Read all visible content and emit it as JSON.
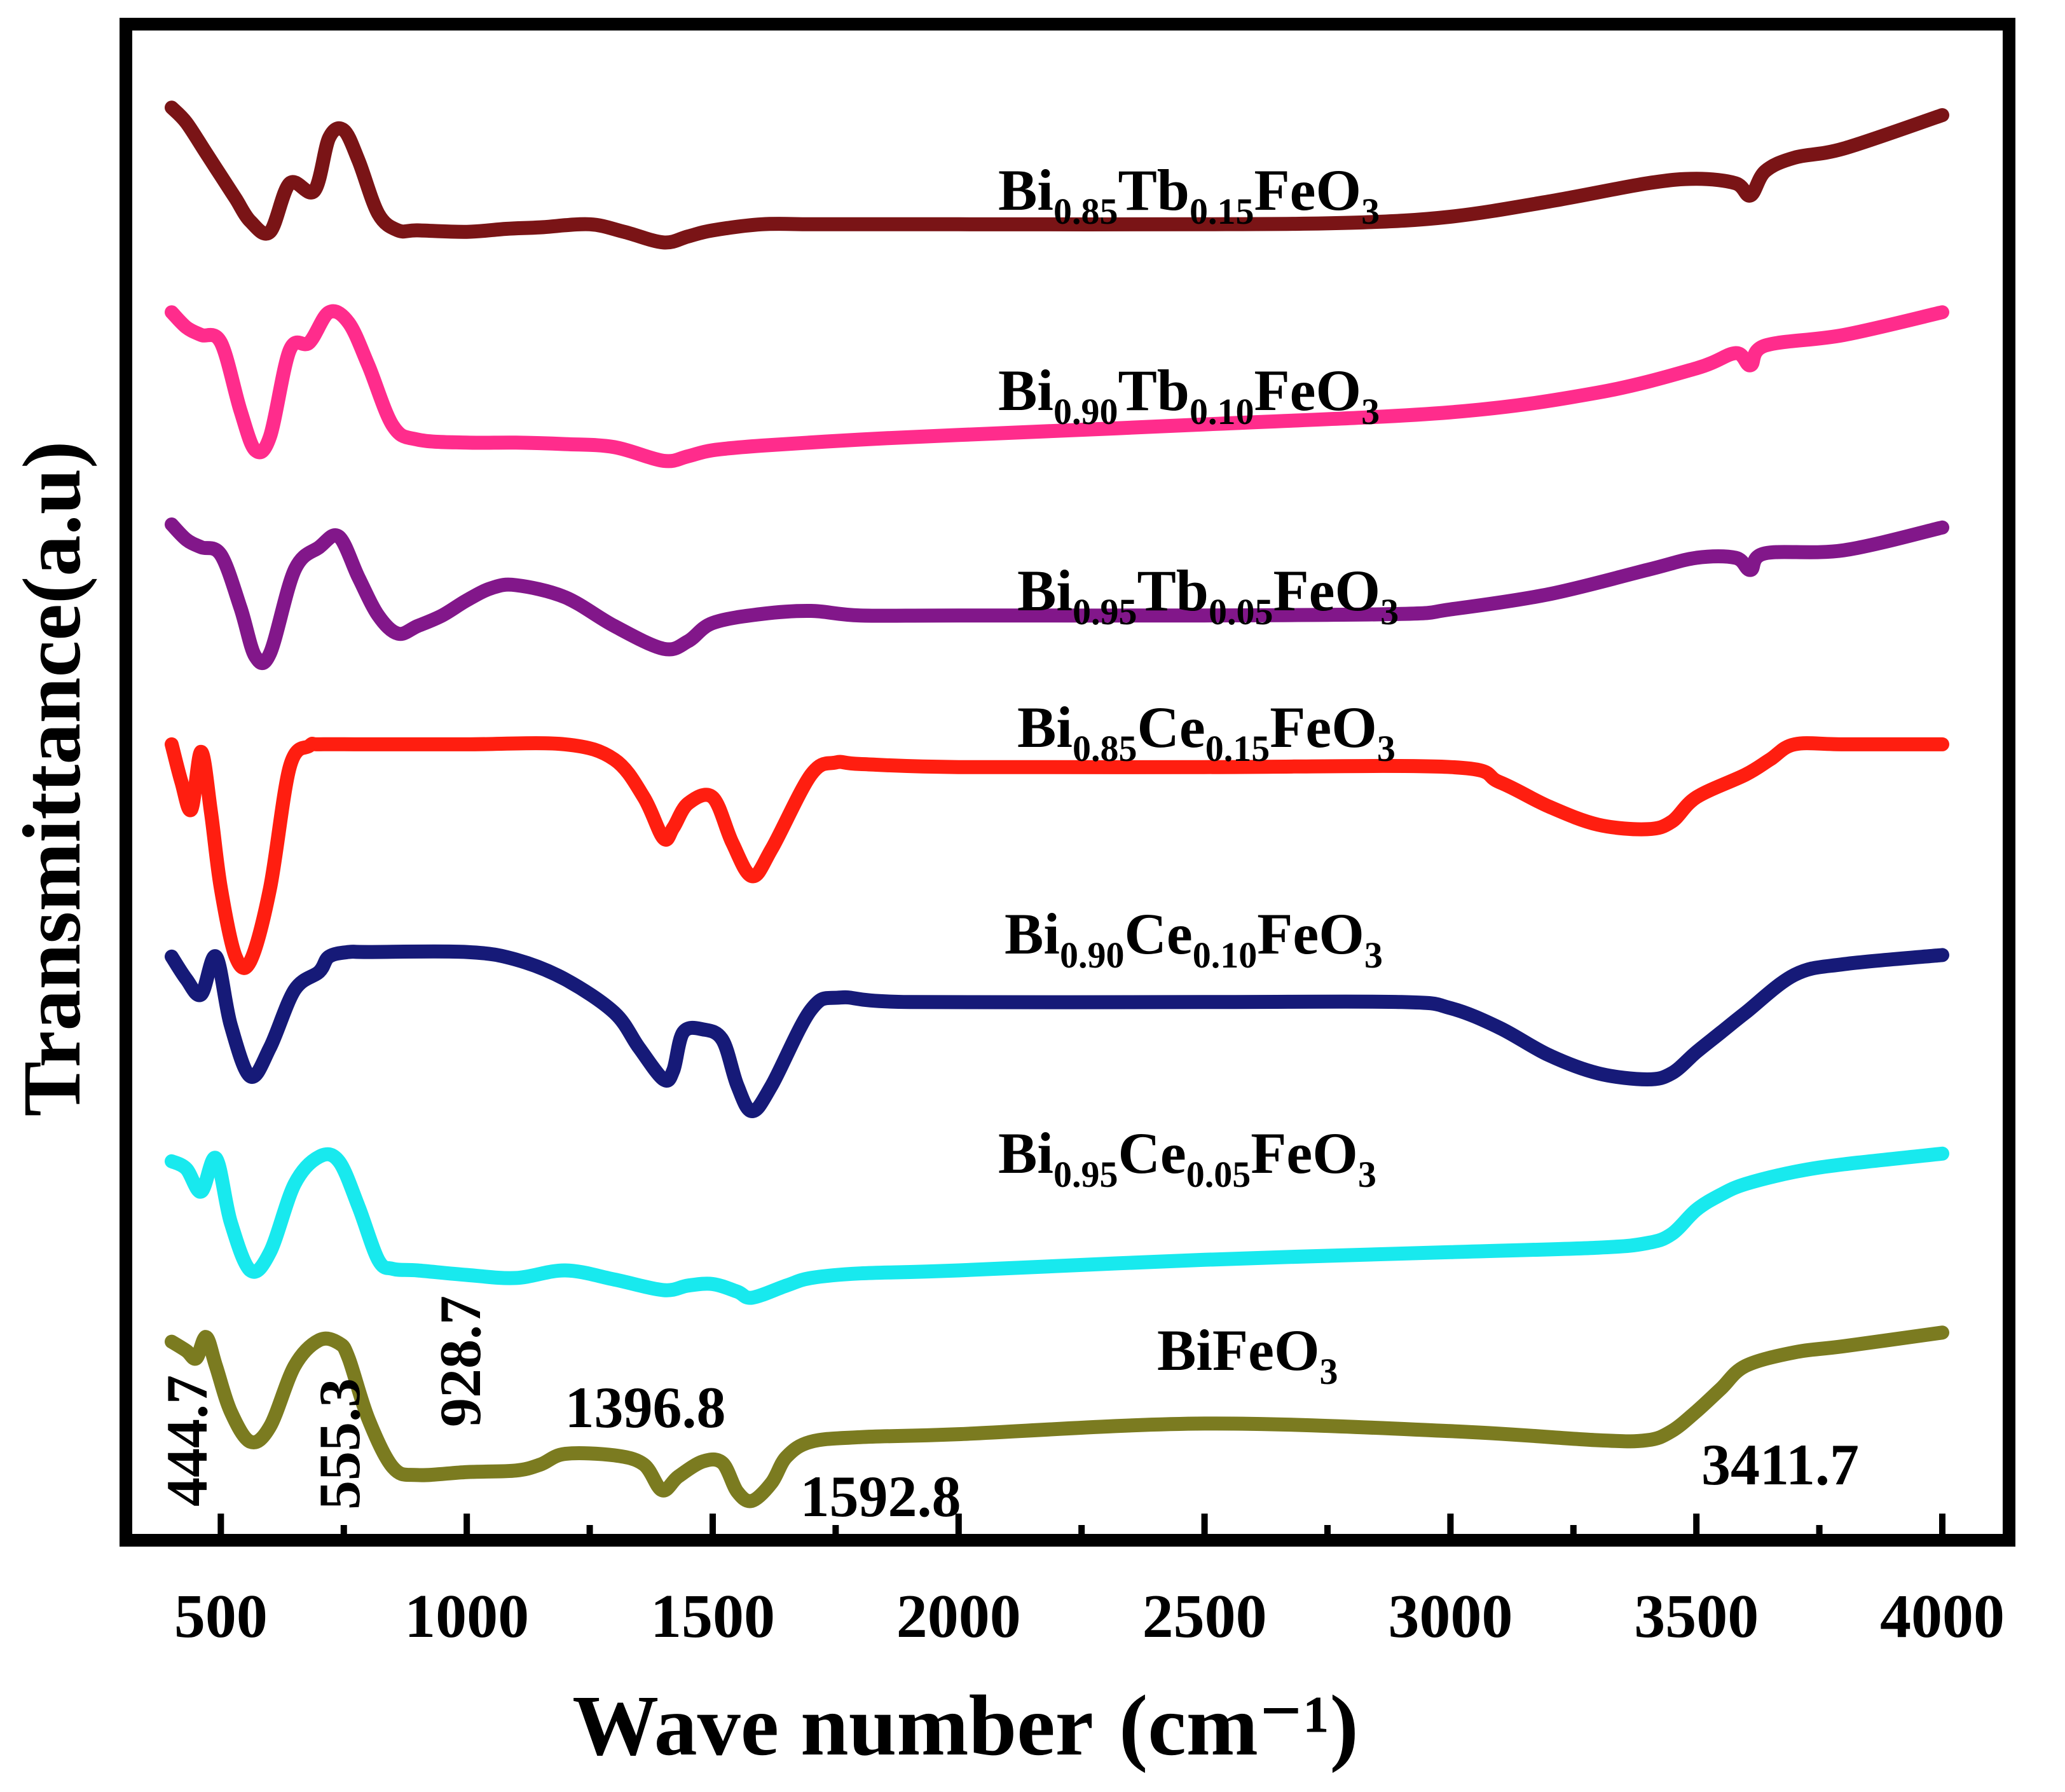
{
  "chart_data": {
    "type": "line",
    "title": "",
    "xlabel": "Wave number",
    "xlabel_unit": "(cm⁻¹)",
    "ylabel": "Transmittance(a.u)",
    "xlim": [
      390,
      4010
    ],
    "x_ticks": [
      500,
      1000,
      1500,
      2000,
      2500,
      3000,
      3500,
      4000
    ],
    "x_tick_labels": [
      "500",
      "1000",
      "1500",
      "2000",
      "2500",
      "3000",
      "3500",
      "4000"
    ],
    "y_ticks_shown": false,
    "grid": false,
    "series_note": "Transmittance in arbitrary units; each spectrum is vertically offset (0 = bottom of frame, 100 = top). Series ordered top to bottom.",
    "series": [
      {
        "name": "Bi0.85Tb0.15FeO3",
        "label_parts": [
          [
            "Bi",
            ""
          ],
          [
            "0.85",
            "sub"
          ],
          [
            "Tb",
            ""
          ],
          [
            "0.15",
            "sub"
          ],
          [
            "FeO",
            ""
          ],
          [
            "3",
            "sub"
          ]
        ],
        "color": "#7a1416",
        "x": [
          400,
          430,
          470,
          500,
          530,
          560,
          600,
          640,
          690,
          720,
          750,
          780,
          820,
          860,
          900,
          1000,
          1080,
          1150,
          1250,
          1320,
          1400,
          1450,
          1500,
          1600,
          1700,
          1800,
          2000,
          2500,
          2800,
          3000,
          3200,
          3400,
          3500,
          3580,
          3610,
          3640,
          3700,
          3800,
          4000
        ],
        "y": [
          94.5,
          93.5,
          91.5,
          90,
          88.5,
          87,
          86.3,
          89.5,
          89,
          92.5,
          93,
          91,
          87.5,
          86.4,
          86.4,
          86.3,
          86.5,
          86.6,
          86.8,
          86.3,
          85.6,
          86,
          86.4,
          86.8,
          86.8,
          86.8,
          86.8,
          86.8,
          86.9,
          87.3,
          88.3,
          89.5,
          89.8,
          89.5,
          88.7,
          90.3,
          91.2,
          91.8,
          94
        ]
      },
      {
        "name": "Bi0.90Tb0.10FeO3",
        "label_parts": [
          [
            "Bi",
            ""
          ],
          [
            "0.90",
            "sub"
          ],
          [
            "Tb",
            ""
          ],
          [
            "0.10",
            "sub"
          ],
          [
            "FeO",
            ""
          ],
          [
            "3",
            "sub"
          ]
        ],
        "color": "#ff2c8c",
        "x": [
          400,
          430,
          460,
          500,
          540,
          570,
          600,
          640,
          680,
          720,
          760,
          800,
          850,
          900,
          1000,
          1100,
          1200,
          1300,
          1400,
          1450,
          1500,
          1600,
          1800,
          2000,
          2500,
          3000,
          3300,
          3500,
          3580,
          3610,
          3640,
          3800,
          4000
        ],
        "y": [
          81,
          80,
          79.5,
          79,
          74.5,
          71.9,
          72.8,
          78.5,
          79,
          81,
          80.3,
          77.5,
          73.5,
          72.6,
          72.4,
          72.4,
          72.3,
          72.1,
          71.2,
          71.5,
          71.9,
          72.2,
          72.6,
          72.9,
          73.6,
          74.4,
          75.7,
          77.3,
          78.3,
          77.5,
          78.8,
          79.5,
          81
        ]
      },
      {
        "name": "Bi0.95Tb0.05FeO3",
        "label_parts": [
          [
            "Bi",
            ""
          ],
          [
            "0.95",
            "sub"
          ],
          [
            "Tb",
            ""
          ],
          [
            "0.05",
            "sub"
          ],
          [
            "FeO",
            ""
          ],
          [
            "3",
            "sub"
          ]
        ],
        "color": "#82178a",
        "x": [
          400,
          430,
          460,
          500,
          540,
          570,
          600,
          650,
          700,
          740,
          780,
          820,
          860,
          900,
          950,
          1000,
          1050,
          1100,
          1200,
          1300,
          1400,
          1450,
          1500,
          1600,
          1700,
          1800,
          2000,
          2500,
          2900,
          3000,
          3200,
          3400,
          3500,
          3580,
          3610,
          3640,
          3800,
          4000
        ],
        "y": [
          67,
          66,
          65.5,
          65,
          61.5,
          58.3,
          58.5,
          64,
          65.5,
          66.2,
          63.5,
          61,
          59.8,
          60.3,
          61,
          62,
          62.8,
          63,
          62.2,
          60.3,
          58.8,
          59.3,
          60.5,
          61.1,
          61.3,
          61,
          61,
          61,
          61.1,
          61.4,
          62.4,
          64,
          64.8,
          64.8,
          64,
          65.1,
          65.3,
          66.8
        ]
      },
      {
        "name": "Bi0.85Ce0.15FeO3",
        "label_parts": [
          [
            "Bi",
            ""
          ],
          [
            "0.85",
            "sub"
          ],
          [
            "Ce",
            ""
          ],
          [
            "0.15",
            "sub"
          ],
          [
            "FeO",
            ""
          ],
          [
            "3",
            "sub"
          ]
        ],
        "color": "#ff1e10",
        "x": [
          400,
          420,
          440,
          460,
          480,
          500,
          530,
          560,
          600,
          640,
          680,
          700,
          800,
          1000,
          1200,
          1300,
          1360,
          1400,
          1420,
          1450,
          1500,
          1540,
          1580,
          1620,
          1700,
          1750,
          1800,
          2000,
          2500,
          3000,
          3100,
          3200,
          3300,
          3400,
          3450,
          3500,
          3600,
          3650,
          3700,
          3800,
          4000
        ],
        "y": [
          52.5,
          50,
          48.2,
          52,
          48,
          43,
          38.5,
          38.2,
          43,
          51,
          52.4,
          52.5,
          52.5,
          52.5,
          52.5,
          51.5,
          49,
          46.3,
          47,
          48.6,
          49,
          46,
          43.8,
          45.6,
          50.5,
          51.3,
          51.2,
          51,
          51,
          51,
          50,
          48.4,
          47.2,
          46.9,
          47.4,
          49,
          50.5,
          51.5,
          52.5,
          52.5,
          52.5
        ]
      },
      {
        "name": "Bi0.90Ce0.10FeO3",
        "label_parts": [
          [
            "Bi",
            ""
          ],
          [
            "0.90",
            "sub"
          ],
          [
            "Ce",
            ""
          ],
          [
            "0.10",
            "sub"
          ],
          [
            "FeO",
            ""
          ],
          [
            "3",
            "sub"
          ]
        ],
        "color": "#161a78",
        "x": [
          400,
          430,
          460,
          490,
          520,
          560,
          600,
          650,
          700,
          720,
          760,
          800,
          1000,
          1100,
          1200,
          1300,
          1350,
          1400,
          1420,
          1440,
          1480,
          1520,
          1550,
          1580,
          1620,
          1700,
          1760,
          1900,
          2500,
          2900,
          3000,
          3100,
          3200,
          3300,
          3400,
          3450,
          3500,
          3550,
          3600,
          3700,
          3800,
          4000
        ],
        "y": [
          38.5,
          37,
          36,
          38.5,
          34,
          30.6,
          32.5,
          36.3,
          37.5,
          38.5,
          38.8,
          38.8,
          38.8,
          38.3,
          37,
          34.8,
          32.5,
          30.4,
          31,
          33.5,
          33.7,
          33,
          30,
          28.3,
          30,
          35,
          35.8,
          35.5,
          35.5,
          35.5,
          35.1,
          33.8,
          32,
          30.8,
          30.4,
          30.8,
          32.2,
          33.5,
          34.8,
          37.3,
          38,
          38.6
        ]
      },
      {
        "name": "Bi0.95Ce0.05FeO3",
        "label_parts": [
          [
            "Bi",
            ""
          ],
          [
            "0.95",
            "sub"
          ],
          [
            "Ce",
            ""
          ],
          [
            "0.05",
            "sub"
          ],
          [
            "FeO",
            ""
          ],
          [
            "3",
            "sub"
          ]
        ],
        "color": "#18e9ee",
        "x": [
          400,
          430,
          460,
          490,
          520,
          560,
          600,
          650,
          700,
          740,
          780,
          820,
          850,
          900,
          1000,
          1100,
          1200,
          1300,
          1400,
          1450,
          1500,
          1550,
          1580,
          1650,
          1700,
          1800,
          2000,
          2500,
          3000,
          3300,
          3400,
          3450,
          3500,
          3550,
          3600,
          3700,
          3800,
          4000
        ],
        "y": [
          25,
          24.5,
          23,
          25.2,
          21,
          17.8,
          19,
          23.5,
          25.3,
          25,
          22,
          18.5,
          17.9,
          17.8,
          17.5,
          17.3,
          17.8,
          17.2,
          16.5,
          16.8,
          16.9,
          16.4,
          16,
          16.8,
          17.3,
          17.6,
          17.8,
          18.5,
          19,
          19.3,
          19.6,
          20.2,
          21.8,
          22.8,
          23.5,
          24.3,
          24.8,
          25.5
        ]
      },
      {
        "name": "BiFeO3",
        "label_parts": [
          [
            "BiFeO",
            ""
          ],
          [
            "3",
            "sub"
          ]
        ],
        "color": "#7b7b20",
        "x": [
          400,
          430,
          450,
          470,
          490,
          520,
          560,
          600,
          650,
          700,
          740,
          760,
          800,
          850,
          900,
          1000,
          1100,
          1150,
          1200,
          1300,
          1360,
          1397,
          1430,
          1480,
          1520,
          1550,
          1580,
          1620,
          1650,
          1700,
          1800,
          2000,
          2500,
          3000,
          3300,
          3400,
          3450,
          3500,
          3550,
          3600,
          3700,
          3800,
          4000
        ],
        "y": [
          13.1,
          12.5,
          12,
          13.4,
          11.5,
          8.5,
          6.5,
          7.5,
          11.5,
          13.2,
          13,
          12,
          8,
          4.8,
          4.3,
          4.5,
          4.6,
          5,
          5.7,
          5.6,
          5,
          3.3,
          4.2,
          5.2,
          5.1,
          3.2,
          2.6,
          3.8,
          5.5,
          6.5,
          6.8,
          7,
          7.7,
          7.2,
          6.6,
          6.6,
          7.2,
          8.5,
          10,
          11.5,
          12.4,
          12.8,
          13.7
        ]
      }
    ],
    "annotations": [
      {
        "text": "444.7",
        "x": 444.7
      },
      {
        "text": "555.3",
        "x": 555.3
      },
      {
        "text": "928.7",
        "x": 928.7
      },
      {
        "text": "1396.8",
        "x": 1396.8
      },
      {
        "text": "1592.8",
        "x": 1592.8
      },
      {
        "text": "3411.7",
        "x": 3411.7
      }
    ]
  }
}
